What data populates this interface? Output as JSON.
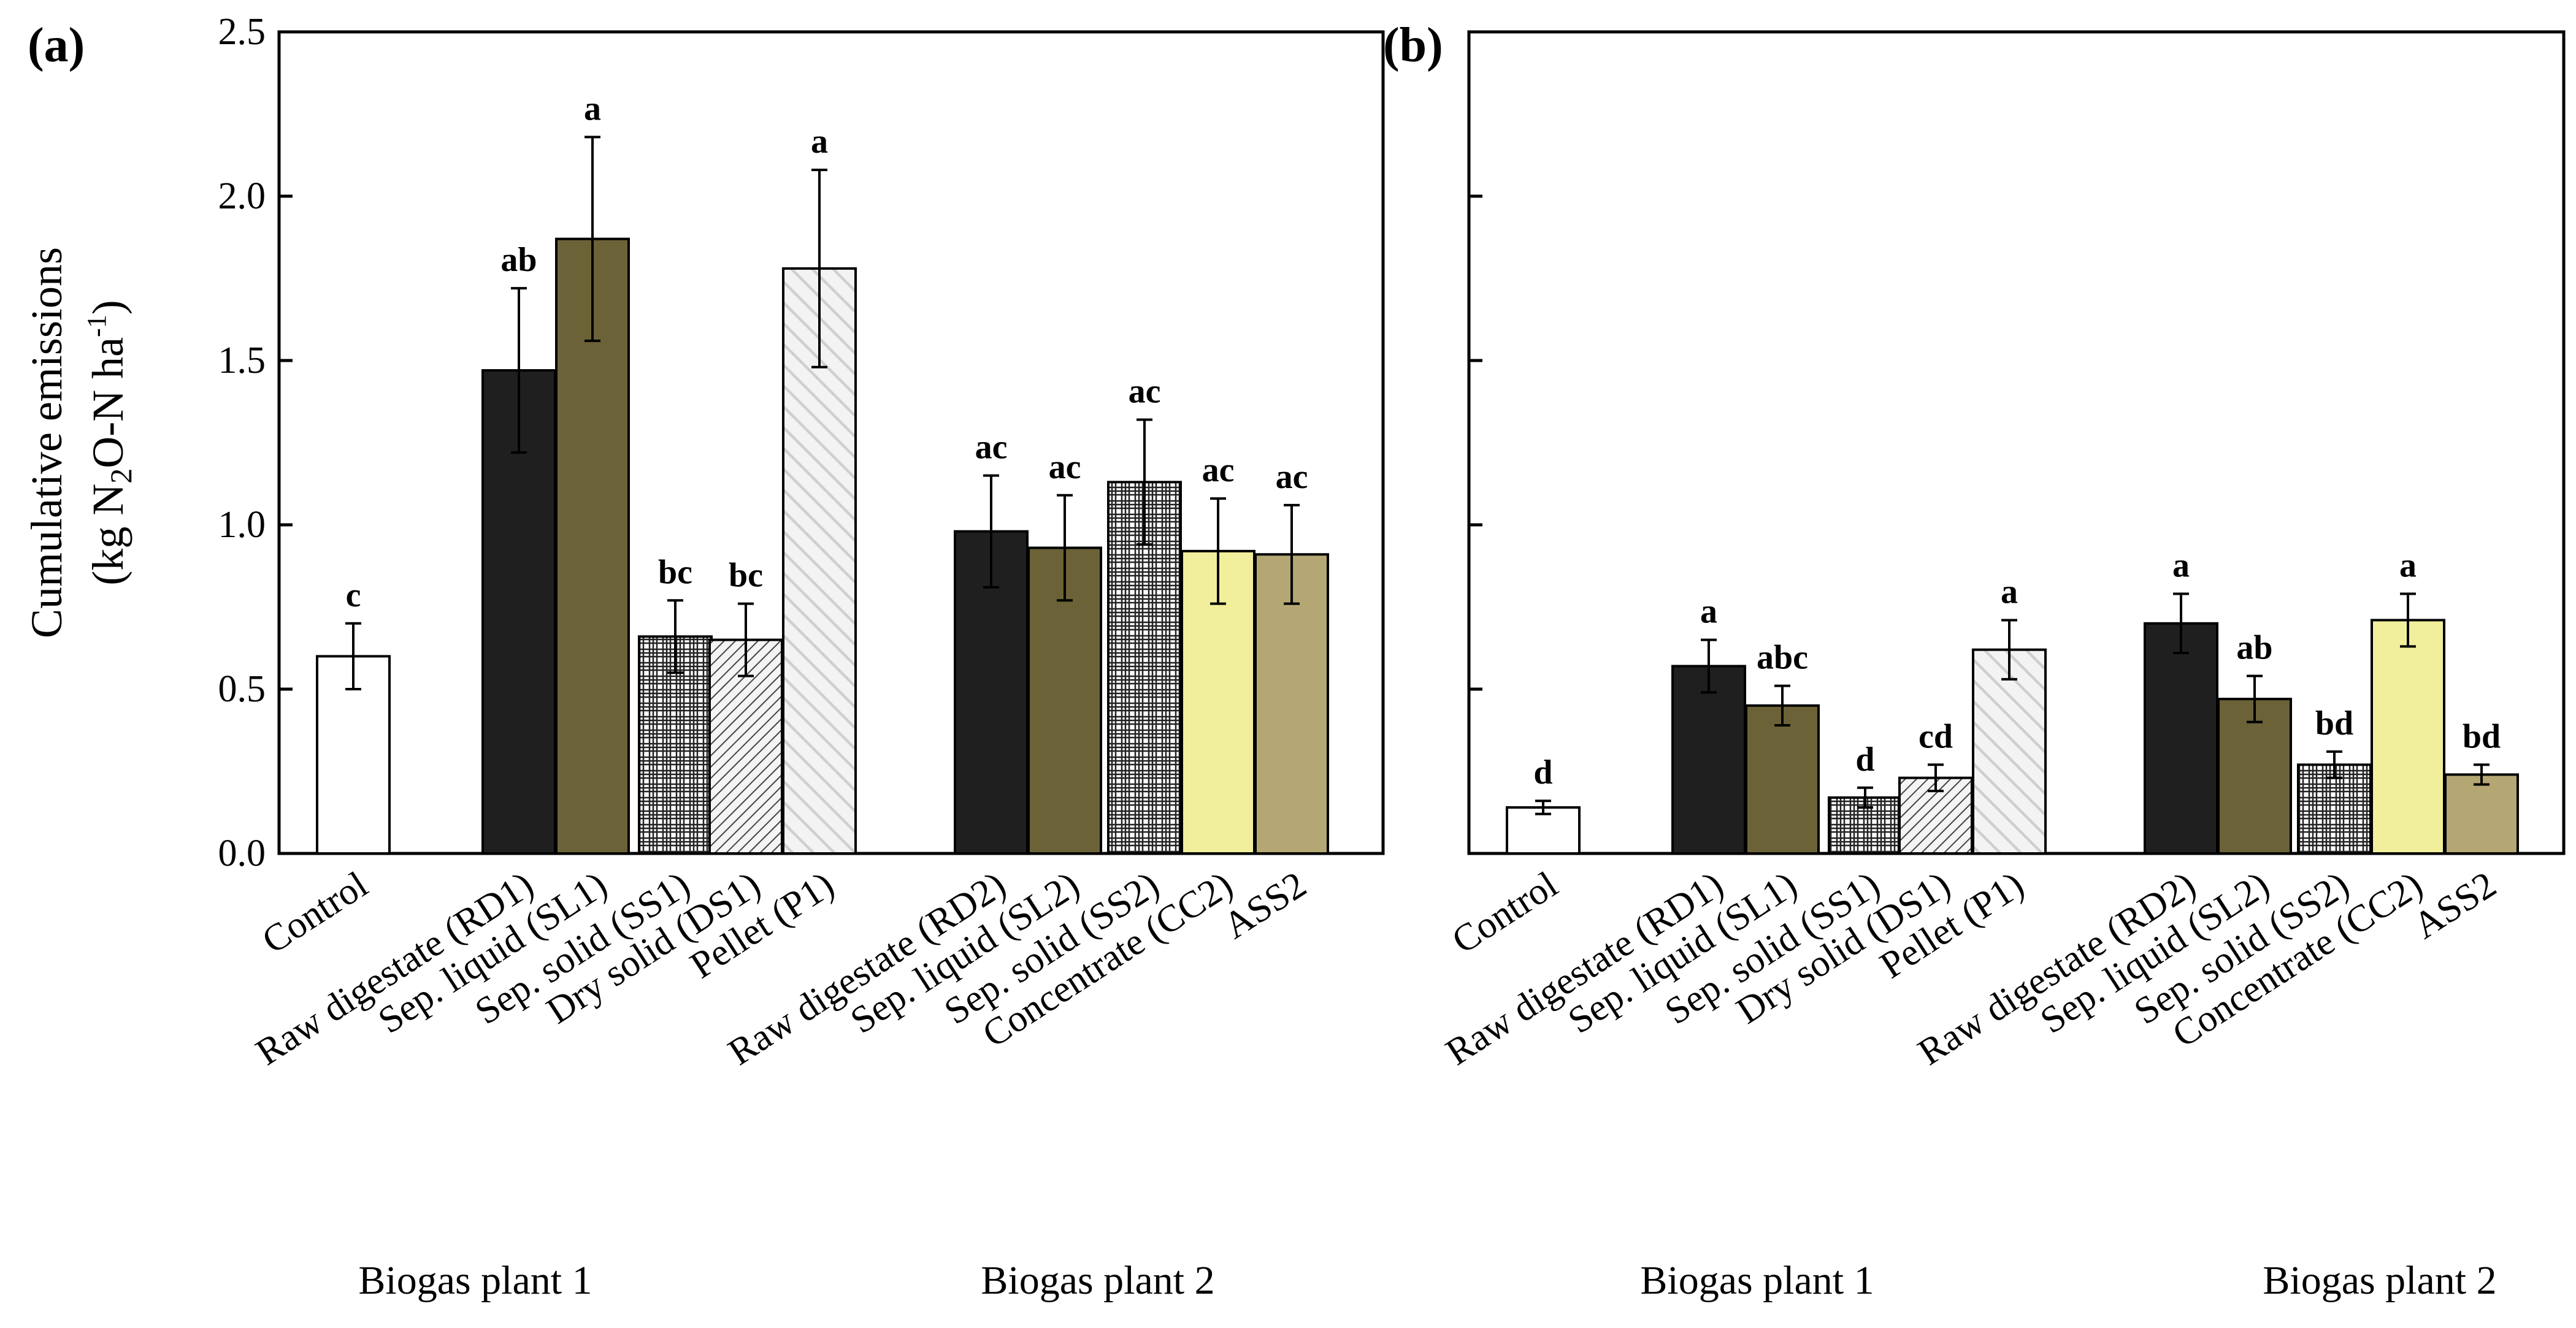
{
  "colors": {
    "dark": "#1f1f1f",
    "olive": "#6b6238",
    "yellow": "#f2ef9c",
    "khaki": "#b5a774",
    "white": "#ffffff",
    "axis": "#000000"
  },
  "groups": [
    "Biogas plant 1",
    "Biogas plant 2"
  ],
  "chart_data": [
    {
      "type": "bar",
      "panel": "(a)",
      "ylabel": "Cumulative emissions",
      "ylabel_line2": {
        "pre": "(kg N",
        "sub": "2",
        "mid": "O-N ha",
        "sup": "-1",
        "post": ")"
      },
      "ylim": [
        0,
        2.5
      ],
      "yticks": [
        "0.0",
        "0.5",
        "1.0",
        "1.5",
        "2.0",
        "2.5"
      ],
      "categories": [
        "Control",
        "Raw digestate (RD1)",
        "Sep. liquid (SL1)",
        "Sep. solid (SS1)",
        "Dry solid (DS1)",
        "Pellet (P1)",
        "Raw digestate (RD2)",
        "Sep. liquid (SL2)",
        "Sep. solid (SS2)",
        "Concentrate (CC2)",
        "ASS2"
      ],
      "values": [
        0.6,
        1.47,
        1.87,
        0.66,
        0.65,
        1.78,
        0.98,
        0.93,
        1.13,
        0.92,
        0.91
      ],
      "errors": [
        0.1,
        0.25,
        0.31,
        0.11,
        0.11,
        0.3,
        0.17,
        0.16,
        0.19,
        0.16,
        0.15
      ],
      "letters": [
        "c",
        "ab",
        "a",
        "bc",
        "bc",
        "a",
        "ac",
        "ac",
        "ac",
        "ac",
        "ac"
      ],
      "styles": [
        "white",
        "dark",
        "olive",
        "checker",
        "hatch",
        "dots",
        "dark",
        "olive",
        "checker",
        "yellow",
        "khaki"
      ],
      "groups": [
        "Biogas plant 1",
        "Biogas plant 2"
      ]
    },
    {
      "type": "bar",
      "panel": "(b)",
      "ylabel": "",
      "ylim": [
        0,
        2.5
      ],
      "yticks_labels_shown": false,
      "categories": [
        "Control",
        "Raw digestate (RD1)",
        "Sep. liquid (SL1)",
        "Sep. solid (SS1)",
        "Dry solid (DS1)",
        "Pellet (P1)",
        "Raw digestate (RD2)",
        "Sep. liquid (SL2)",
        "Sep. solid (SS2)",
        "Concentrate (CC2)",
        "ASS2"
      ],
      "values": [
        0.14,
        0.57,
        0.45,
        0.17,
        0.23,
        0.62,
        0.7,
        0.47,
        0.27,
        0.71,
        0.24
      ],
      "errors": [
        0.02,
        0.08,
        0.06,
        0.03,
        0.04,
        0.09,
        0.09,
        0.07,
        0.04,
        0.08,
        0.03
      ],
      "letters": [
        "d",
        "a",
        "abc",
        "d",
        "cd",
        "a",
        "a",
        "ab",
        "bd",
        "a",
        "bd"
      ],
      "styles": [
        "white",
        "dark",
        "olive",
        "checker",
        "hatch",
        "dots",
        "dark",
        "olive",
        "checker",
        "yellow",
        "khaki"
      ],
      "groups": [
        "Biogas plant 1",
        "Biogas plant 2"
      ]
    }
  ]
}
